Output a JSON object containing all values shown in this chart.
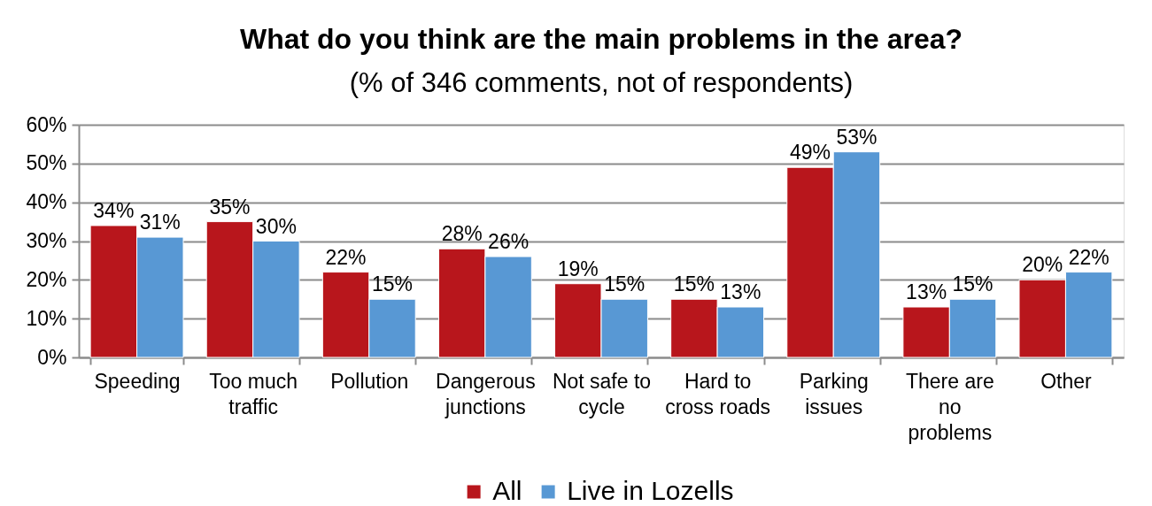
{
  "chart_data": {
    "type": "bar",
    "title": "What do you think are the main problems in the area?",
    "subtitle": "(% of 346 comments, not of respondents)",
    "categories": [
      "Speeding",
      "Too much traffic",
      "Pollution",
      "Dangerous junctions",
      "Not safe to cycle",
      "Hard to cross roads",
      "Parking issues",
      "There are no problems",
      "Other"
    ],
    "series": [
      {
        "name": "All",
        "color": "#b8161c",
        "values": [
          34,
          35,
          22,
          28,
          19,
          15,
          49,
          13,
          20
        ],
        "value_labels": [
          "34%",
          "35%",
          "22%",
          "28%",
          "19%",
          "15%",
          "49%",
          "13%",
          "20%"
        ]
      },
      {
        "name": "Live in Lozells",
        "color": "#5898d4",
        "values": [
          31,
          30,
          15,
          26,
          15,
          13,
          53,
          15,
          22
        ],
        "value_labels": [
          "31%",
          "30%",
          "15%",
          "26%",
          "15%",
          "13%",
          "53%",
          "15%",
          "22%"
        ]
      }
    ],
    "ylim": [
      0,
      60
    ],
    "yticks": [
      {
        "value": 0,
        "label": "0%"
      },
      {
        "value": 10,
        "label": "10%"
      },
      {
        "value": 20,
        "label": "20%"
      },
      {
        "value": 30,
        "label": "30%"
      },
      {
        "value": 40,
        "label": "40%"
      },
      {
        "value": 50,
        "label": "50%"
      },
      {
        "value": 60,
        "label": "60%"
      }
    ],
    "grid": "y",
    "legend": "bottom"
  }
}
